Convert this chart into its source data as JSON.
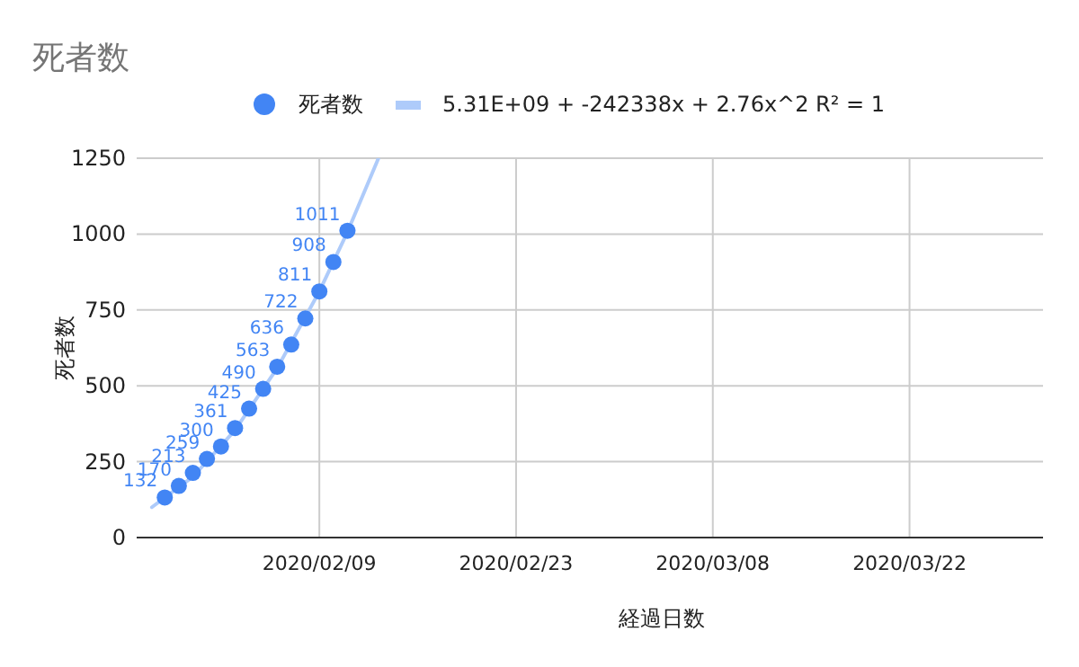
{
  "chart_data": {
    "type": "scatter",
    "title": "死者数",
    "xlabel": "経過日数",
    "ylabel": "死者数",
    "x": [
      "2020-01-29",
      "2020-01-30",
      "2020-01-31",
      "2020-02-01",
      "2020-02-02",
      "2020-02-03",
      "2020-02-04",
      "2020-02-05",
      "2020-02-06",
      "2020-02-07",
      "2020-02-08",
      "2020-02-09",
      "2020-02-10",
      "2020-02-11"
    ],
    "series": [
      {
        "name": "死者数",
        "color": "#4285f4",
        "values": [
          132,
          170,
          213,
          259,
          300,
          361,
          425,
          490,
          563,
          636,
          722,
          811,
          908,
          1011
        ],
        "marker": "circle"
      },
      {
        "name": "5.31E+09 + -242338x + 2.76x^2 R² = 1",
        "type": "line",
        "color": "#aecbfa",
        "marker": "none",
        "line_style": "solid",
        "data_labels": false,
        "x": [
          "2020-01-28T02:00",
          "2020-01-31",
          "2020-02-03",
          "2020-02-06",
          "2020-02-09",
          "2020-02-11",
          "2020-02-13T05:00"
        ],
        "values": [
          100,
          200,
          354,
          558,
          811,
          1007,
          1250
        ]
      }
    ],
    "data_labels": true,
    "xlim": [
      "2020-01-27",
      "2020-03-31T12:00"
    ],
    "xticks": [
      {
        "value": "2020-02-09",
        "label": "2020/02/09"
      },
      {
        "value": "2020-02-23",
        "label": "2020/02/23"
      },
      {
        "value": "2020-03-08",
        "label": "2020/03/08"
      },
      {
        "value": "2020-03-22",
        "label": "2020/03/22"
      }
    ],
    "ylim": [
      0,
      1250
    ],
    "yticks": [
      0,
      250,
      500,
      750,
      1000,
      1250
    ],
    "grid": true,
    "legend": "top"
  }
}
